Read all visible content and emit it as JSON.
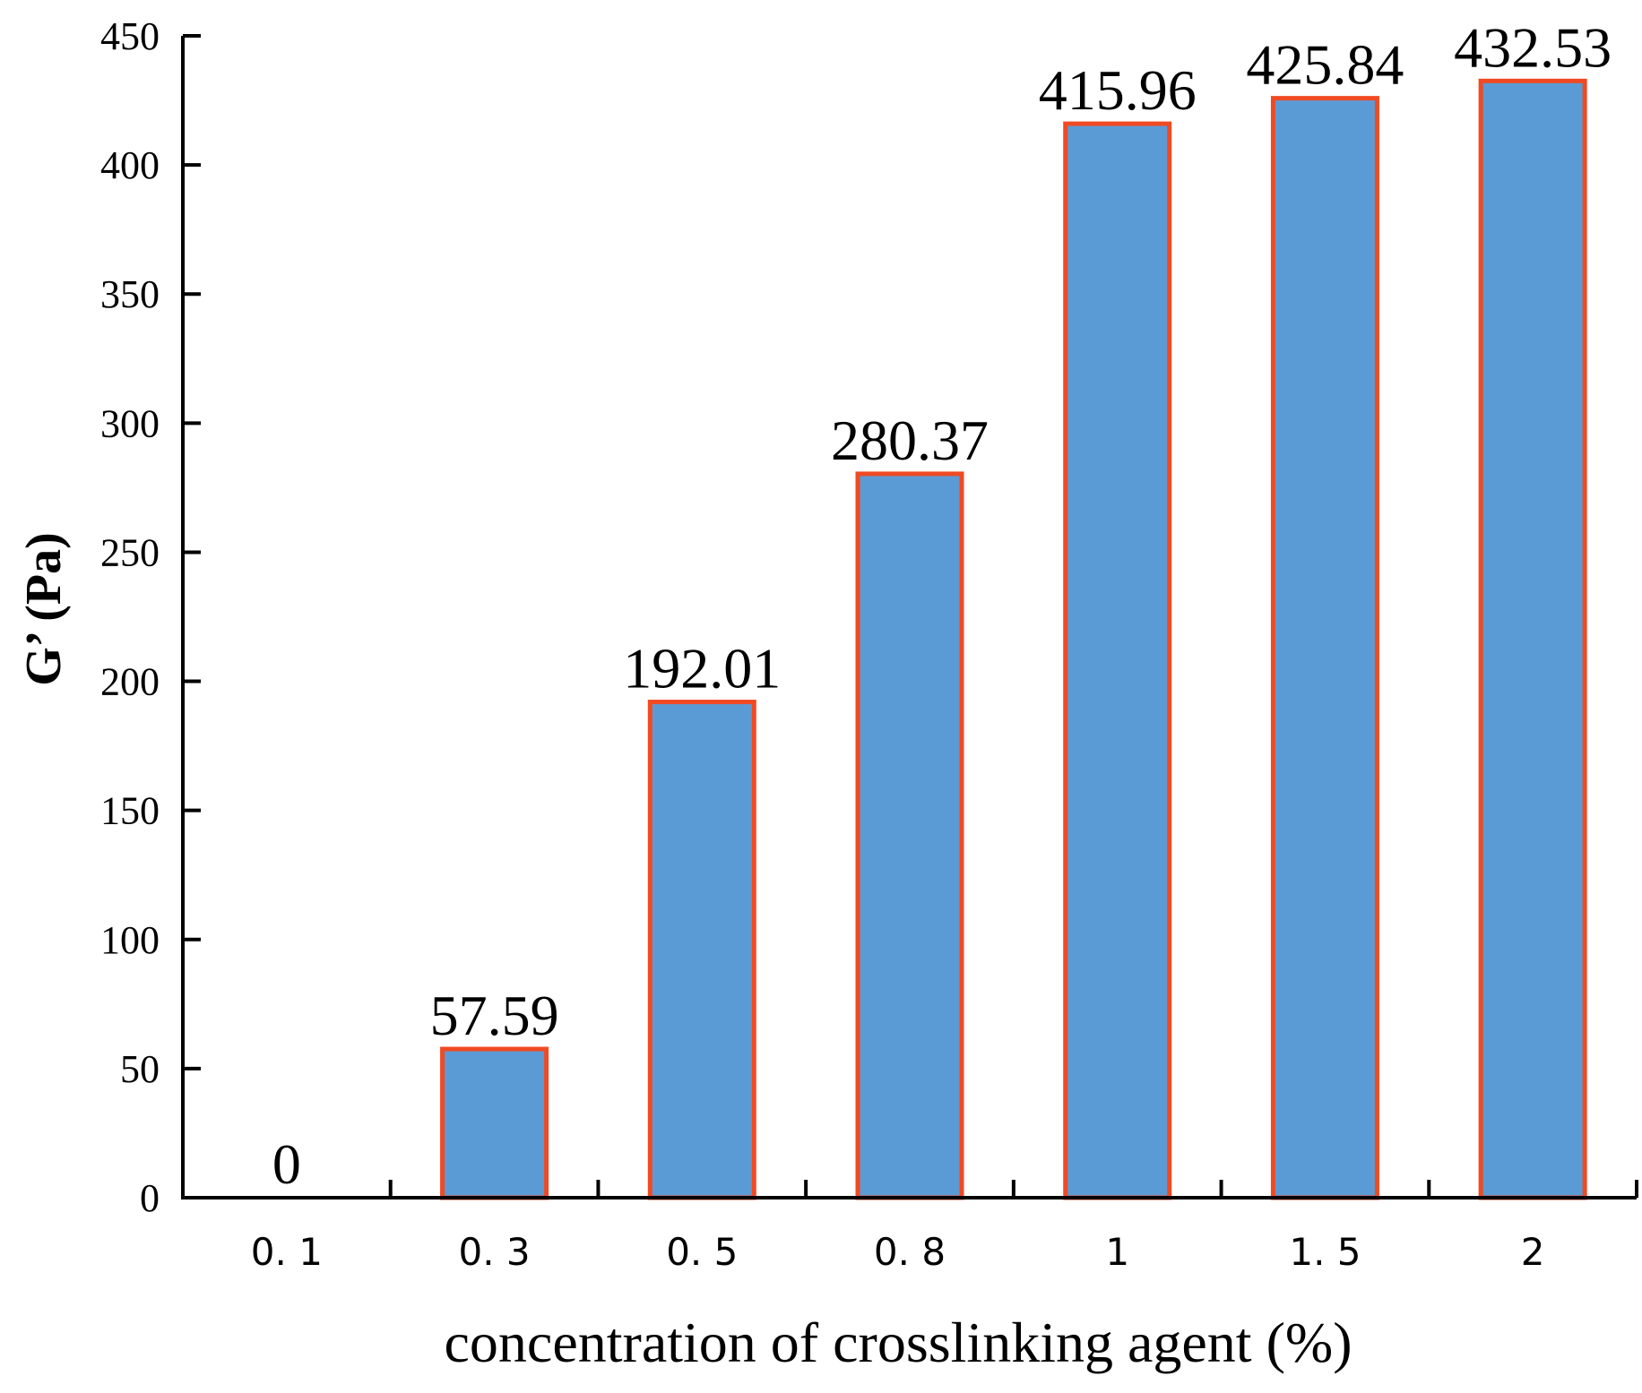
{
  "chart_data": {
    "type": "bar",
    "title": "",
    "xlabel": "concentration of crosslinking agent (%)",
    "ylabel": "G’ (Pa)",
    "categories": [
      "0. 1",
      "0. 3",
      "0. 5",
      "0. 8",
      "1",
      "1. 5",
      "2"
    ],
    "values": [
      0,
      57.59,
      192.01,
      280.37,
      415.96,
      425.84,
      432.53
    ],
    "value_labels": [
      "0",
      "57.59",
      "192.01",
      "280.37",
      "415.96",
      "425.84",
      "432.53"
    ],
    "ylim": [
      0,
      450
    ],
    "yticks": [
      0,
      50,
      100,
      150,
      200,
      250,
      300,
      350,
      400,
      450
    ],
    "grid": false,
    "bar_fill": "#5b9bd5",
    "bar_edge": "#f04a23"
  }
}
